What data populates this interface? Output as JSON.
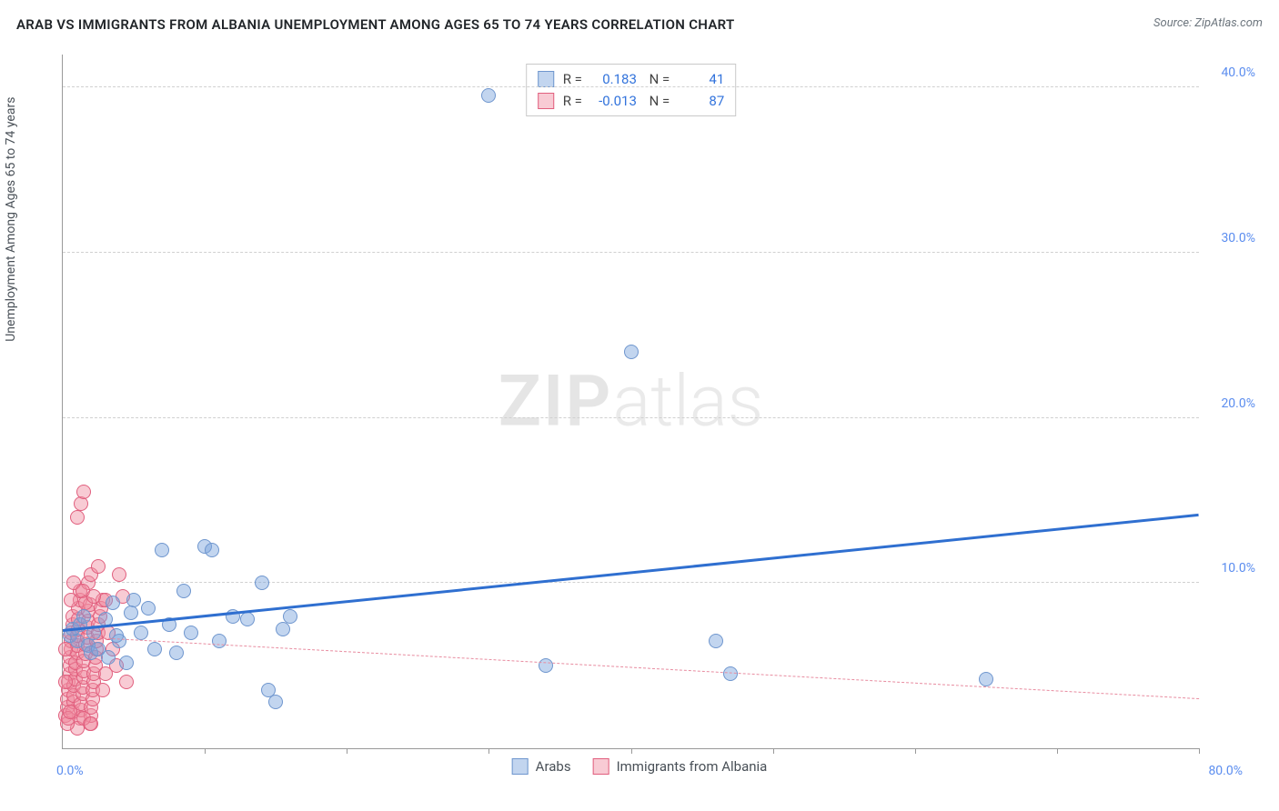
{
  "header": {
    "title": "ARAB VS IMMIGRANTS FROM ALBANIA UNEMPLOYMENT AMONG AGES 65 TO 74 YEARS CORRELATION CHART",
    "source": "Source: ZipAtlas.com"
  },
  "chart": {
    "type": "scatter",
    "y_axis_label": "Unemployment Among Ages 65 to 74 years",
    "xlim": [
      0,
      80
    ],
    "ylim": [
      0,
      42
    ],
    "x_tick_labels": {
      "min": "0.0%",
      "max": "80.0%"
    },
    "x_tick_positions": [
      10,
      20,
      30,
      40,
      50,
      60,
      70,
      80
    ],
    "y_gridlines": [
      {
        "value": 10,
        "label": "10.0%"
      },
      {
        "value": 20,
        "label": "20.0%"
      },
      {
        "value": 30,
        "label": "30.0%"
      },
      {
        "value": 40,
        "label": "40.0%"
      }
    ],
    "background_color": "#ffffff",
    "grid_color": "#d0d0d0",
    "axis_color": "#999999",
    "watermark": {
      "part1": "ZIP",
      "part2": "atlas"
    },
    "series": [
      {
        "name": "Arabs",
        "fill": "rgba(120,162,219,0.45)",
        "stroke": "#6f96ce",
        "marker_radius": 8,
        "stats": {
          "R": "0.183",
          "N": "41"
        },
        "trend": {
          "x1": 0,
          "y1": 7.2,
          "x2": 80,
          "y2": 14.2,
          "color": "#2f6fd0",
          "width": 3,
          "dash": "solid"
        },
        "points": [
          [
            0.5,
            6.8
          ],
          [
            0.7,
            7.2
          ],
          [
            1.0,
            6.5
          ],
          [
            1.2,
            7.5
          ],
          [
            1.5,
            8.0
          ],
          [
            1.8,
            6.2
          ],
          [
            2.0,
            5.8
          ],
          [
            2.2,
            7.0
          ],
          [
            2.5,
            6.0
          ],
          [
            3.0,
            7.8
          ],
          [
            3.2,
            5.5
          ],
          [
            3.5,
            8.8
          ],
          [
            4.0,
            6.5
          ],
          [
            4.5,
            5.2
          ],
          [
            5.0,
            9.0
          ],
          [
            5.5,
            7.0
          ],
          [
            6.0,
            8.5
          ],
          [
            6.5,
            6.0
          ],
          [
            7.0,
            12.0
          ],
          [
            7.5,
            7.5
          ],
          [
            8.0,
            5.8
          ],
          [
            8.5,
            9.5
          ],
          [
            9.0,
            7.0
          ],
          [
            10.0,
            12.2
          ],
          [
            10.5,
            12.0
          ],
          [
            11.0,
            6.5
          ],
          [
            12.0,
            8.0
          ],
          [
            13.0,
            7.8
          ],
          [
            14.0,
            10.0
          ],
          [
            14.5,
            3.5
          ],
          [
            15.0,
            2.8
          ],
          [
            15.5,
            7.2
          ],
          [
            16.0,
            8.0
          ],
          [
            30.0,
            39.5
          ],
          [
            34.0,
            5.0
          ],
          [
            40.0,
            24.0
          ],
          [
            46.0,
            6.5
          ],
          [
            47.0,
            4.5
          ],
          [
            65.0,
            4.2
          ],
          [
            3.8,
            6.8
          ],
          [
            4.8,
            8.2
          ]
        ]
      },
      {
        "name": "Immigrants from Albania",
        "fill": "rgba(239,140,160,0.45)",
        "stroke": "#e15f7e",
        "marker_radius": 8,
        "stats": {
          "R": "-0.013",
          "N": "87"
        },
        "trend": {
          "x1": 0,
          "y1": 6.8,
          "x2": 80,
          "y2": 3.0,
          "color": "#e88ca0",
          "width": 1,
          "dash": "dashed"
        },
        "points": [
          [
            0.2,
            2.0
          ],
          [
            0.3,
            2.5
          ],
          [
            0.3,
            3.0
          ],
          [
            0.4,
            3.5
          ],
          [
            0.4,
            4.0
          ],
          [
            0.5,
            4.5
          ],
          [
            0.5,
            5.0
          ],
          [
            0.5,
            5.5
          ],
          [
            0.6,
            6.0
          ],
          [
            0.6,
            6.5
          ],
          [
            0.6,
            7.0
          ],
          [
            0.7,
            7.5
          ],
          [
            0.7,
            8.0
          ],
          [
            0.7,
            2.2
          ],
          [
            0.8,
            2.8
          ],
          [
            0.8,
            3.2
          ],
          [
            0.8,
            3.8
          ],
          [
            0.9,
            4.2
          ],
          [
            0.9,
            4.8
          ],
          [
            0.9,
            5.2
          ],
          [
            1.0,
            5.8
          ],
          [
            1.0,
            6.2
          ],
          [
            1.0,
            6.8
          ],
          [
            1.1,
            7.2
          ],
          [
            1.1,
            7.8
          ],
          [
            1.1,
            8.5
          ],
          [
            1.2,
            9.0
          ],
          [
            1.2,
            9.5
          ],
          [
            1.2,
            1.8
          ],
          [
            1.3,
            2.3
          ],
          [
            1.3,
            2.7
          ],
          [
            1.4,
            3.3
          ],
          [
            1.4,
            3.7
          ],
          [
            1.5,
            4.3
          ],
          [
            1.5,
            4.7
          ],
          [
            1.5,
            5.3
          ],
          [
            1.6,
            5.7
          ],
          [
            1.6,
            6.3
          ],
          [
            1.7,
            6.7
          ],
          [
            1.7,
            7.3
          ],
          [
            1.8,
            7.7
          ],
          [
            1.8,
            8.3
          ],
          [
            1.9,
            8.7
          ],
          [
            1.9,
            1.5
          ],
          [
            2.0,
            2.0
          ],
          [
            2.0,
            2.5
          ],
          [
            2.1,
            3.0
          ],
          [
            2.1,
            3.5
          ],
          [
            2.2,
            4.0
          ],
          [
            2.2,
            4.5
          ],
          [
            2.3,
            5.0
          ],
          [
            2.3,
            5.5
          ],
          [
            2.4,
            6.0
          ],
          [
            2.4,
            6.5
          ],
          [
            2.5,
            7.0
          ],
          [
            2.5,
            7.5
          ],
          [
            2.6,
            8.0
          ],
          [
            2.7,
            8.5
          ],
          [
            2.8,
            9.0
          ],
          [
            1.0,
            14.0
          ],
          [
            1.3,
            14.8
          ],
          [
            1.5,
            15.5
          ],
          [
            3.0,
            9.0
          ],
          [
            3.2,
            7.0
          ],
          [
            3.5,
            6.0
          ],
          [
            3.8,
            5.0
          ],
          [
            4.0,
            10.5
          ],
          [
            4.2,
            9.2
          ],
          [
            4.5,
            4.0
          ],
          [
            1.0,
            1.2
          ],
          [
            1.5,
            1.8
          ],
          [
            2.0,
            1.5
          ],
          [
            0.3,
            1.5
          ],
          [
            0.4,
            1.8
          ],
          [
            0.5,
            2.2
          ],
          [
            2.8,
            3.5
          ],
          [
            3.0,
            4.5
          ],
          [
            1.8,
            10.0
          ],
          [
            2.0,
            10.5
          ],
          [
            2.5,
            11.0
          ],
          [
            0.8,
            10.0
          ],
          [
            0.6,
            9.0
          ],
          [
            1.4,
            9.5
          ],
          [
            1.6,
            8.8
          ],
          [
            2.2,
            9.2
          ],
          [
            0.2,
            6.0
          ],
          [
            0.2,
            4.0
          ]
        ]
      }
    ],
    "bottom_legend": [
      {
        "label": "Arabs",
        "fill": "rgba(120,162,219,0.55)",
        "stroke": "#6f96ce"
      },
      {
        "label": "Immigrants from Albania",
        "fill": "rgba(239,140,160,0.55)",
        "stroke": "#e15f7e"
      }
    ]
  }
}
